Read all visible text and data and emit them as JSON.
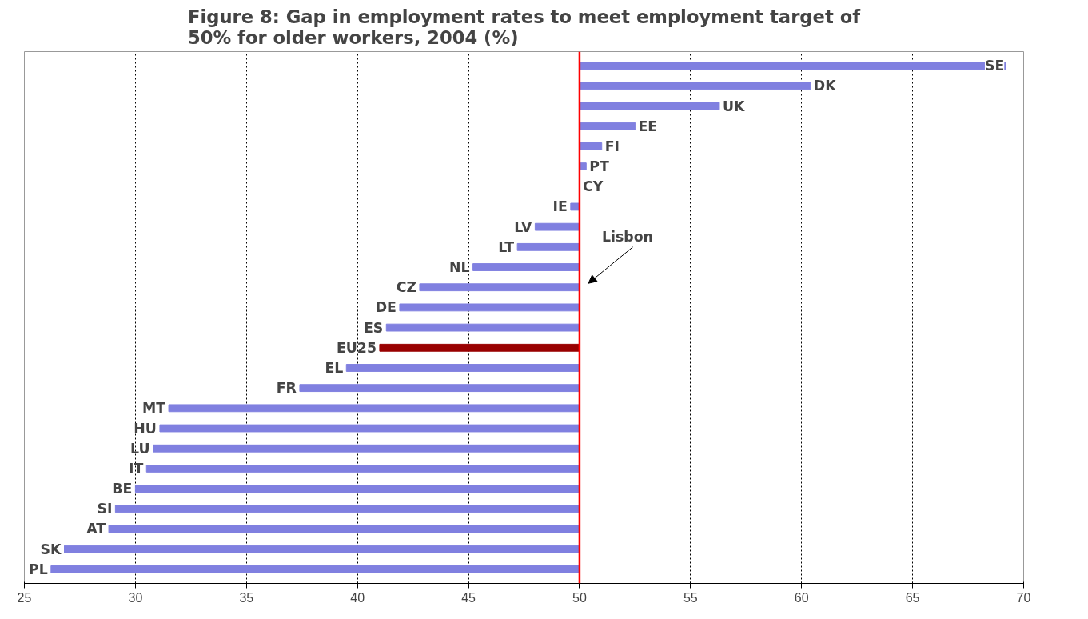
{
  "chart_data": {
    "type": "bar",
    "orientation": "horizontal",
    "title": "Figure 8: Gap in employment rates to meet employment target of\n50% for older workers, 2004 (%)",
    "categories": [
      "SE",
      "DK",
      "UK",
      "EE",
      "FI",
      "PT",
      "CY",
      "IE",
      "LV",
      "LT",
      "NL",
      "CZ",
      "DE",
      "ES",
      "EU25",
      "EL",
      "FR",
      "MT",
      "HU",
      "LU",
      "IT",
      "BE",
      "SI",
      "AT",
      "SK",
      "PL"
    ],
    "base": [
      50,
      50,
      50,
      50,
      50,
      50,
      50,
      50,
      50,
      50,
      50,
      50,
      50,
      50,
      50,
      50,
      50,
      50,
      50,
      50,
      50,
      50,
      50,
      50,
      50,
      50
    ],
    "values": [
      19.2,
      10.4,
      6.3,
      2.5,
      1.0,
      0.3,
      0,
      -0.4,
      -2.0,
      -2.8,
      -4.8,
      -7.2,
      -8.1,
      -8.7,
      -9.0,
      -10.5,
      -12.6,
      -18.5,
      -18.9,
      -19.2,
      -19.5,
      -20.0,
      -20.9,
      -21.2,
      -23.2,
      -23.8
    ],
    "colors": [
      "#8080e0",
      "#8080e0",
      "#8080e0",
      "#8080e0",
      "#8080e0",
      "#8080e0",
      "#8080e0",
      "#8080e0",
      "#8080e0",
      "#8080e0",
      "#8080e0",
      "#8080e0",
      "#8080e0",
      "#8080e0",
      "#990000",
      "#8080e0",
      "#8080e0",
      "#8080e0",
      "#8080e0",
      "#8080e0",
      "#8080e0",
      "#8080e0",
      "#8080e0",
      "#8080e0",
      "#8080e0",
      "#8080e0"
    ],
    "xlim": [
      25,
      70
    ],
    "xticks": [
      25,
      30,
      35,
      40,
      45,
      50,
      55,
      60,
      65,
      70
    ],
    "ref_lines": [
      {
        "axis": "x",
        "value": 50,
        "label": "Lisbon",
        "color": "#ff0000"
      }
    ],
    "grid": "x",
    "tick_labels": "x"
  }
}
